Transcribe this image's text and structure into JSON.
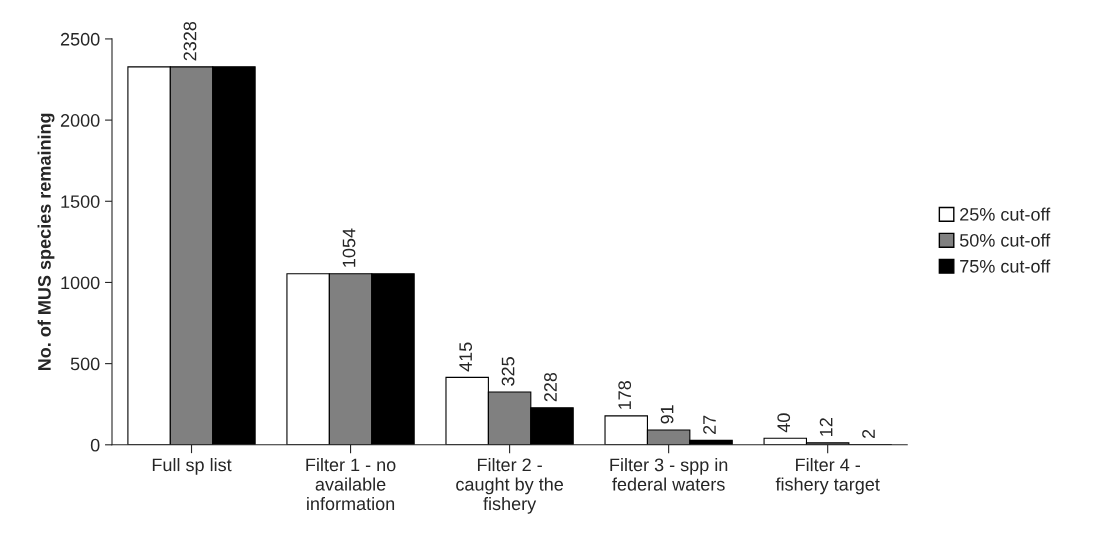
{
  "chart_data": {
    "type": "bar",
    "categories": [
      "Full sp list",
      "Filter 1 - no\navailable\ninformation",
      "Filter 2 -\ncaught by the\nfishery",
      "Filter 3 - spp in\nfederal waters",
      "Filter 4 -\nfishery target"
    ],
    "ylabel": "No. of MUS species remaining",
    "series": [
      {
        "name": "25% cut-off",
        "color": "#ffffff",
        "values": [
          2328,
          1054,
          415,
          178,
          40
        ],
        "value_labels": [
          null,
          null,
          "415",
          "178",
          "40"
        ]
      },
      {
        "name": "50% cut-off",
        "color": "#808080",
        "values": [
          2328,
          1054,
          325,
          91,
          12
        ],
        "value_labels": [
          "2328",
          "1054",
          "325",
          "91",
          "12"
        ]
      },
      {
        "name": "75% cut-off",
        "color": "#000000",
        "values": [
          2328,
          1054,
          228,
          27,
          2
        ],
        "value_labels": [
          null,
          null,
          "228",
          "27",
          "2"
        ]
      }
    ],
    "ylim": [
      0,
      2500
    ],
    "yticks": [
      0,
      500,
      1000,
      1500,
      2000,
      2500
    ],
    "grid": false,
    "legend": "right"
  }
}
